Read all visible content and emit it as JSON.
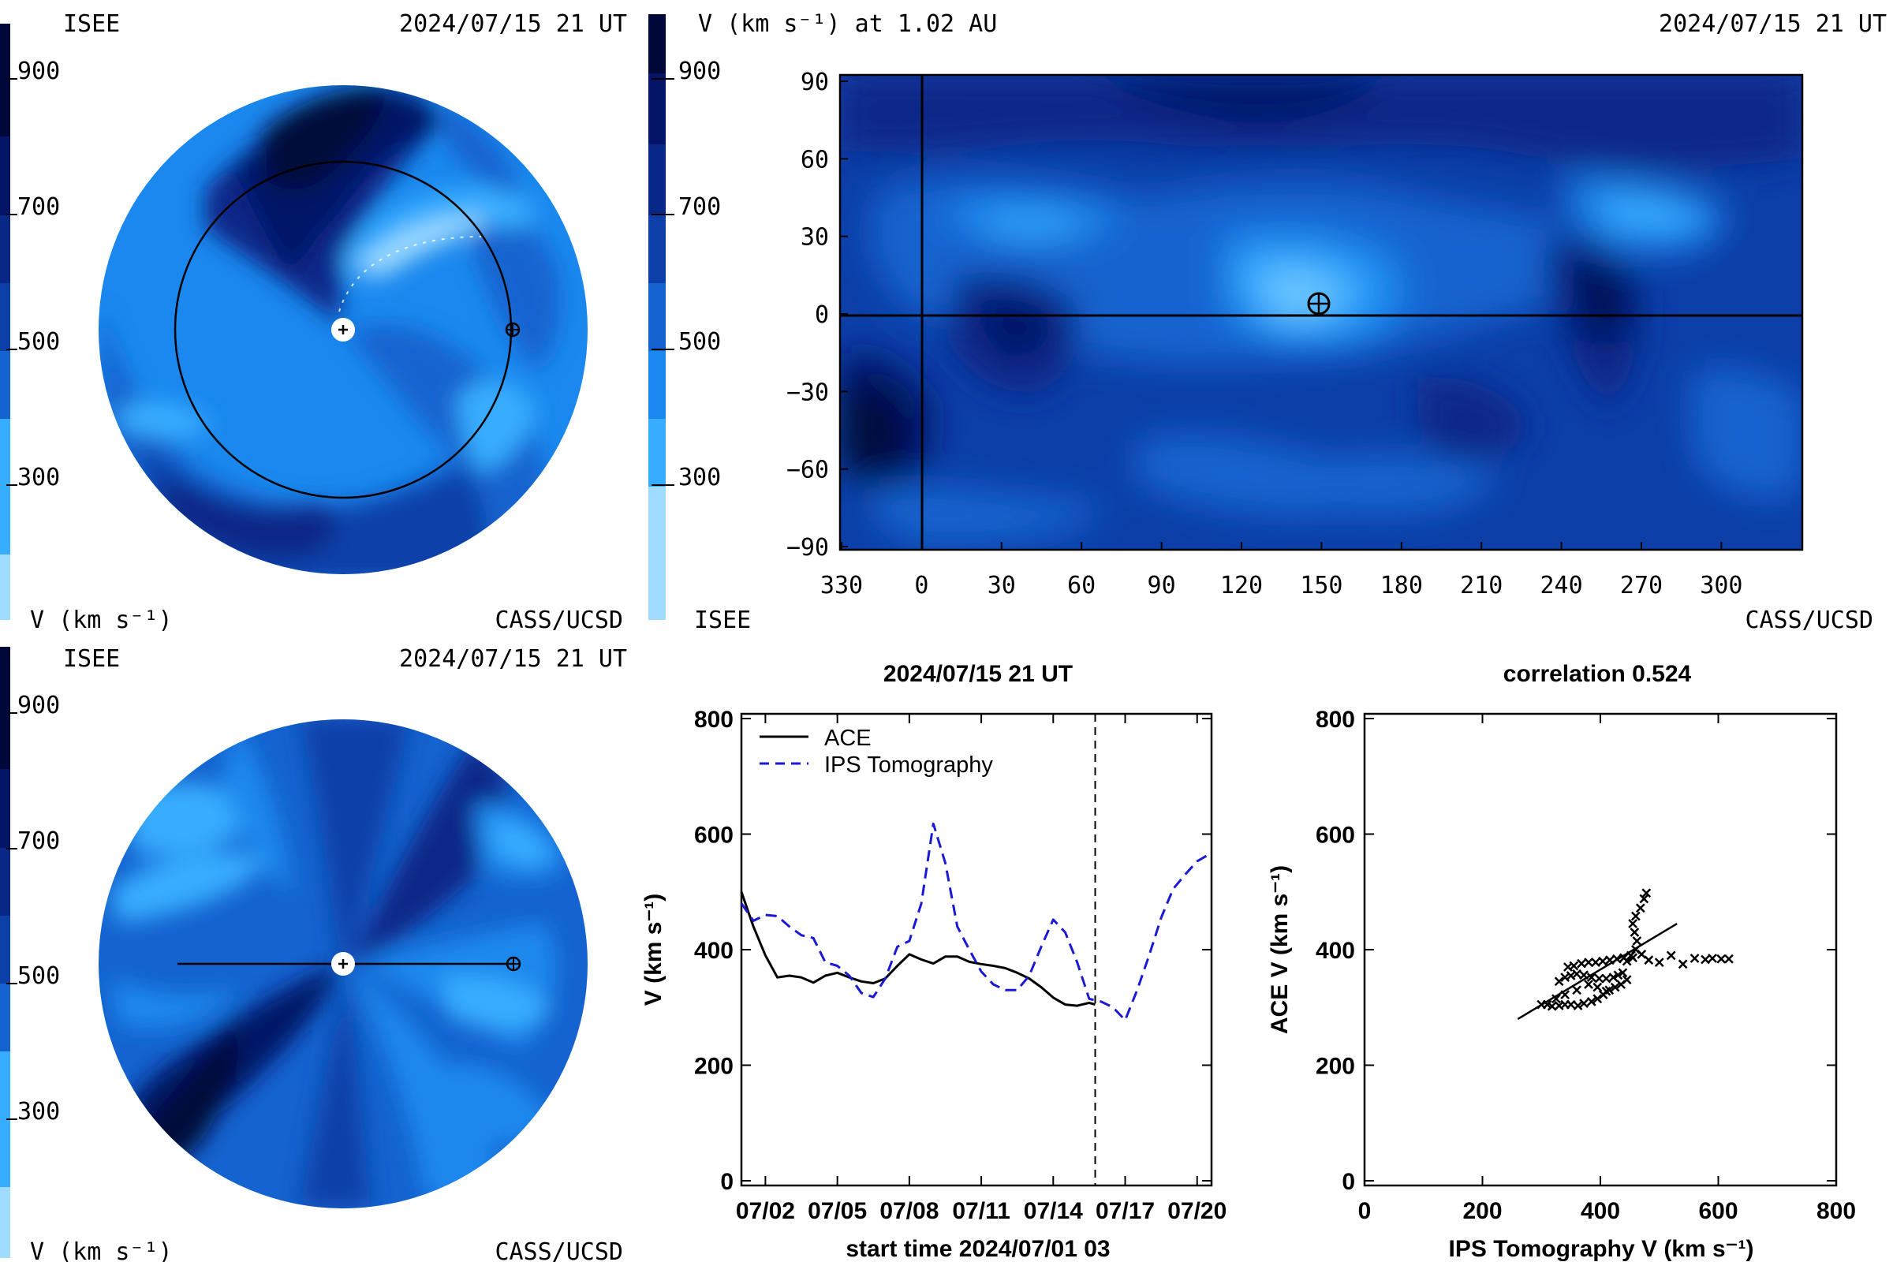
{
  "panels": {
    "ecliptic": {
      "org_top": "ISEE",
      "timestamp": "2024/07/15 21 UT",
      "org_bottom": "CASS/UCSD",
      "cbar_label": "V (km s⁻¹)",
      "cbar_ticks": [
        "900",
        "700",
        "500",
        "300"
      ]
    },
    "meridional": {
      "org_top": "ISEE",
      "timestamp": "2024/07/15 21 UT",
      "org_bottom": "CASS/UCSD",
      "cbar_label": "V (km s⁻¹)",
      "cbar_ticks": [
        "900",
        "700",
        "500",
        "300"
      ]
    },
    "synoptic": {
      "title": "V (km s⁻¹) at 1.02 AU",
      "timestamp": "2024/07/15 21 UT",
      "org_bottom_left": "ISEE",
      "org_bottom_right": "CASS/UCSD",
      "cbar_ticks": [
        "900",
        "700",
        "500",
        "300"
      ],
      "lat_ticks": [
        "90",
        "60",
        "30",
        "0",
        "−30",
        "−60",
        "−90"
      ],
      "lon_ticks": [
        "330",
        "0",
        "30",
        "60",
        "90",
        "120",
        "150",
        "180",
        "210",
        "240",
        "270",
        "300"
      ]
    }
  },
  "colors": {
    "level_1_lightest": "#9fdcff",
    "level_2": "#37adff",
    "level_3": "#1a88ee",
    "level_4": "#1463cf",
    "level_5": "#0c3fa8",
    "level_6": "#082887",
    "level_7": "#041466",
    "level_8": "#00083a",
    "ace_line": "#000000",
    "ips_line": "#1a1ad6"
  },
  "chart_data": [
    {
      "type": "line",
      "title": "2024/07/15 21 UT",
      "xlabel": "start time 2024/07/01 03",
      "ylabel": "V (km s⁻¹)",
      "x_tick_labels": [
        "07/02",
        "07/05",
        "07/08",
        "07/11",
        "07/14",
        "07/17",
        "07/20"
      ],
      "x_tick_days": [
        1,
        4,
        7,
        10,
        13,
        16,
        19
      ],
      "xlim_days": [
        0,
        19.6
      ],
      "ylim": [
        0,
        800
      ],
      "y_ticks": [
        0,
        200,
        400,
        600,
        800
      ],
      "marker_line_day": 14.75,
      "series": [
        {
          "name": "ACE",
          "style": "solid",
          "x_days": [
            0,
            0.5,
            1,
            1.5,
            2,
            2.5,
            3,
            3.5,
            4,
            4.5,
            5,
            5.5,
            6,
            6.5,
            7,
            7.5,
            8,
            8.5,
            9,
            9.5,
            10,
            10.5,
            11,
            11.5,
            12,
            12.5,
            13,
            13.5,
            14,
            14.5,
            14.75
          ],
          "values": [
            500,
            440,
            390,
            352,
            355,
            352,
            343,
            355,
            360,
            352,
            345,
            342,
            350,
            372,
            392,
            383,
            376,
            388,
            388,
            379,
            375,
            372,
            368,
            360,
            350,
            335,
            317,
            305,
            303,
            308,
            305
          ]
        },
        {
          "name": "IPS Tomography",
          "style": "dashed",
          "x_days": [
            0,
            0.5,
            1,
            1.5,
            2,
            2.5,
            3,
            3.5,
            4,
            4.5,
            5,
            5.5,
            6,
            6.5,
            7,
            7.5,
            8,
            8.5,
            9,
            9.5,
            10,
            10.5,
            11,
            11.5,
            12,
            12.5,
            13,
            13.5,
            14,
            14.5,
            15,
            15.5,
            16,
            16.5,
            17,
            17.5,
            18,
            18.5,
            19,
            19.5
          ],
          "values": [
            480,
            450,
            460,
            458,
            440,
            425,
            420,
            378,
            372,
            355,
            325,
            318,
            350,
            405,
            415,
            480,
            618,
            550,
            440,
            400,
            362,
            340,
            330,
            330,
            355,
            405,
            452,
            430,
            378,
            315,
            310,
            300,
            278,
            330,
            390,
            455,
            505,
            530,
            553,
            565
          ]
        }
      ]
    },
    {
      "type": "scatter",
      "title": "correlation 0.524",
      "xlabel": "IPS Tomography V (km s⁻¹)",
      "ylabel": "ACE V (km s⁻¹)",
      "xlim": [
        0,
        800
      ],
      "ylim": [
        0,
        800
      ],
      "x_ticks": [
        0,
        200,
        400,
        600,
        800
      ],
      "y_ticks": [
        0,
        200,
        400,
        600,
        800
      ],
      "fit_line": {
        "x": [
          260,
          530
        ],
        "y": [
          280,
          445
        ]
      },
      "points": [
        {
          "x": 300,
          "y": 305
        },
        {
          "x": 310,
          "y": 305
        },
        {
          "x": 318,
          "y": 302
        },
        {
          "x": 330,
          "y": 303
        },
        {
          "x": 340,
          "y": 305
        },
        {
          "x": 350,
          "y": 305
        },
        {
          "x": 362,
          "y": 303
        },
        {
          "x": 372,
          "y": 307
        },
        {
          "x": 385,
          "y": 310
        },
        {
          "x": 395,
          "y": 315
        },
        {
          "x": 405,
          "y": 322
        },
        {
          "x": 415,
          "y": 330
        },
        {
          "x": 425,
          "y": 335
        },
        {
          "x": 435,
          "y": 340
        },
        {
          "x": 445,
          "y": 348
        },
        {
          "x": 330,
          "y": 345
        },
        {
          "x": 340,
          "y": 352
        },
        {
          "x": 350,
          "y": 355
        },
        {
          "x": 360,
          "y": 358
        },
        {
          "x": 372,
          "y": 356
        },
        {
          "x": 385,
          "y": 352
        },
        {
          "x": 398,
          "y": 350
        },
        {
          "x": 410,
          "y": 350
        },
        {
          "x": 422,
          "y": 352
        },
        {
          "x": 430,
          "y": 356
        },
        {
          "x": 438,
          "y": 360
        },
        {
          "x": 345,
          "y": 370
        },
        {
          "x": 355,
          "y": 372
        },
        {
          "x": 368,
          "y": 376
        },
        {
          "x": 380,
          "y": 378
        },
        {
          "x": 392,
          "y": 378
        },
        {
          "x": 404,
          "y": 380
        },
        {
          "x": 416,
          "y": 382
        },
        {
          "x": 428,
          "y": 384
        },
        {
          "x": 440,
          "y": 386
        },
        {
          "x": 452,
          "y": 390
        },
        {
          "x": 460,
          "y": 400
        },
        {
          "x": 462,
          "y": 415
        },
        {
          "x": 458,
          "y": 430
        },
        {
          "x": 455,
          "y": 445
        },
        {
          "x": 460,
          "y": 458
        },
        {
          "x": 468,
          "y": 472
        },
        {
          "x": 474,
          "y": 488
        },
        {
          "x": 478,
          "y": 498
        },
        {
          "x": 445,
          "y": 380
        },
        {
          "x": 455,
          "y": 386
        },
        {
          "x": 470,
          "y": 392
        },
        {
          "x": 482,
          "y": 382
        },
        {
          "x": 500,
          "y": 378
        },
        {
          "x": 520,
          "y": 390
        },
        {
          "x": 540,
          "y": 375
        },
        {
          "x": 560,
          "y": 385
        },
        {
          "x": 578,
          "y": 383
        },
        {
          "x": 590,
          "y": 385
        },
        {
          "x": 605,
          "y": 384
        },
        {
          "x": 618,
          "y": 384
        },
        {
          "x": 380,
          "y": 340
        },
        {
          "x": 395,
          "y": 335
        },
        {
          "x": 410,
          "y": 328
        },
        {
          "x": 360,
          "y": 330
        },
        {
          "x": 340,
          "y": 322
        },
        {
          "x": 325,
          "y": 315
        }
      ]
    }
  ],
  "legend": {
    "ace": "ACE",
    "ips": "IPS Tomography"
  },
  "scatter_title": "correlation 0.524",
  "line_title": "2024/07/15 21 UT"
}
